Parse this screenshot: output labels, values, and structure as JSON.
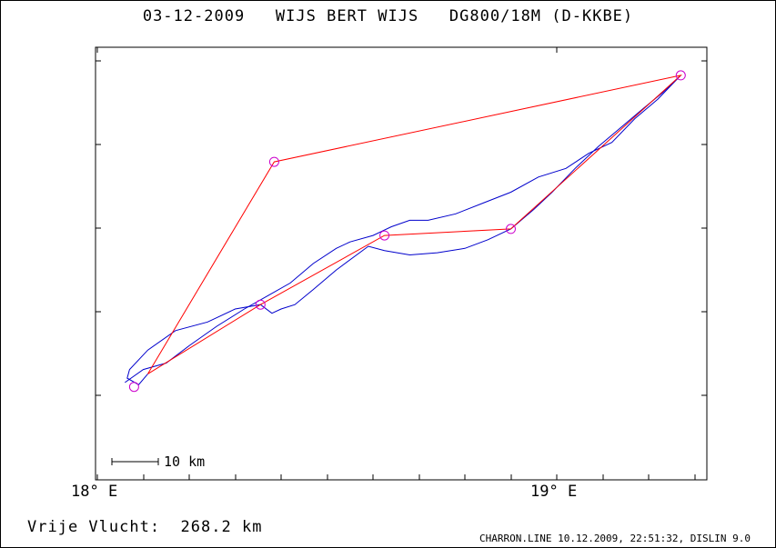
{
  "header": {
    "date": "03-12-2009",
    "pilot": "WIJS BERT WIJS",
    "glider": "DG800/18M (D-KKBE)"
  },
  "axis": {
    "x_tick_labels": [
      "18° E",
      "19° E"
    ],
    "lon_range": [
      17.995,
      19.33
    ],
    "lat_range": [
      0,
      1
    ]
  },
  "scale_bar": {
    "label": "10 km"
  },
  "footer": {
    "distance_label": "Vrije Vlucht:",
    "distance_value": "268.2 km",
    "credit": "CHARRON.LINE 10.12.2009, 22:51:32, DISLIN 9.0"
  },
  "colors": {
    "track": "#0000cc",
    "task": "#ff0000",
    "turnpoint": "#cc00cc",
    "axes": "#000000"
  },
  "map_data": {
    "turnpoints": [
      {
        "lon": 18.08,
        "lat": 0.215
      },
      {
        "lon": 18.355,
        "lat": 0.405
      },
      {
        "lon": 18.385,
        "lat": 0.735
      },
      {
        "lon": 18.625,
        "lat": 0.565
      },
      {
        "lon": 18.9,
        "lat": 0.58
      },
      {
        "lon": 19.27,
        "lat": 0.935
      }
    ],
    "task_route": [
      {
        "lon": 18.11,
        "lat": 0.245
      },
      {
        "lon": 18.355,
        "lat": 0.405
      },
      {
        "lon": 18.625,
        "lat": 0.565
      },
      {
        "lon": 18.9,
        "lat": 0.58
      },
      {
        "lon": 19.27,
        "lat": 0.935
      },
      {
        "lon": 18.385,
        "lat": 0.735
      },
      {
        "lon": 18.11,
        "lat": 0.245
      }
    ],
    "track_upper": [
      {
        "lon": 18.06,
        "lat": 0.225
      },
      {
        "lon": 18.1,
        "lat": 0.255
      },
      {
        "lon": 18.15,
        "lat": 0.27
      },
      {
        "lon": 18.2,
        "lat": 0.31
      },
      {
        "lon": 18.26,
        "lat": 0.355
      },
      {
        "lon": 18.32,
        "lat": 0.395
      },
      {
        "lon": 18.37,
        "lat": 0.425
      },
      {
        "lon": 18.42,
        "lat": 0.455
      },
      {
        "lon": 18.47,
        "lat": 0.5
      },
      {
        "lon": 18.52,
        "lat": 0.535
      },
      {
        "lon": 18.55,
        "lat": 0.55
      },
      {
        "lon": 18.6,
        "lat": 0.565
      },
      {
        "lon": 18.64,
        "lat": 0.585
      },
      {
        "lon": 18.68,
        "lat": 0.6
      },
      {
        "lon": 18.72,
        "lat": 0.6
      },
      {
        "lon": 18.78,
        "lat": 0.615
      },
      {
        "lon": 18.84,
        "lat": 0.64
      },
      {
        "lon": 18.9,
        "lat": 0.665
      },
      {
        "lon": 18.96,
        "lat": 0.7
      },
      {
        "lon": 19.02,
        "lat": 0.72
      },
      {
        "lon": 19.07,
        "lat": 0.755
      },
      {
        "lon": 19.12,
        "lat": 0.78
      },
      {
        "lon": 19.17,
        "lat": 0.835
      },
      {
        "lon": 19.22,
        "lat": 0.88
      },
      {
        "lon": 19.27,
        "lat": 0.935
      }
    ],
    "track_lower": [
      {
        "lon": 19.27,
        "lat": 0.935
      },
      {
        "lon": 19.23,
        "lat": 0.895
      },
      {
        "lon": 19.19,
        "lat": 0.86
      },
      {
        "lon": 19.14,
        "lat": 0.815
      },
      {
        "lon": 19.09,
        "lat": 0.77
      },
      {
        "lon": 19.04,
        "lat": 0.72
      },
      {
        "lon": 18.99,
        "lat": 0.665
      },
      {
        "lon": 18.95,
        "lat": 0.625
      },
      {
        "lon": 18.9,
        "lat": 0.58
      },
      {
        "lon": 18.85,
        "lat": 0.555
      },
      {
        "lon": 18.8,
        "lat": 0.535
      },
      {
        "lon": 18.74,
        "lat": 0.525
      },
      {
        "lon": 18.68,
        "lat": 0.52
      },
      {
        "lon": 18.625,
        "lat": 0.53
      },
      {
        "lon": 18.59,
        "lat": 0.54
      },
      {
        "lon": 18.52,
        "lat": 0.485
      },
      {
        "lon": 18.47,
        "lat": 0.44
      },
      {
        "lon": 18.43,
        "lat": 0.405
      },
      {
        "lon": 18.4,
        "lat": 0.395
      },
      {
        "lon": 18.38,
        "lat": 0.385
      },
      {
        "lon": 18.355,
        "lat": 0.405
      },
      {
        "lon": 18.3,
        "lat": 0.395
      },
      {
        "lon": 18.24,
        "lat": 0.365
      },
      {
        "lon": 18.17,
        "lat": 0.345
      },
      {
        "lon": 18.11,
        "lat": 0.3
      },
      {
        "lon": 18.07,
        "lat": 0.255
      },
      {
        "lon": 18.065,
        "lat": 0.235
      },
      {
        "lon": 18.09,
        "lat": 0.22
      },
      {
        "lon": 18.11,
        "lat": 0.245
      }
    ]
  }
}
